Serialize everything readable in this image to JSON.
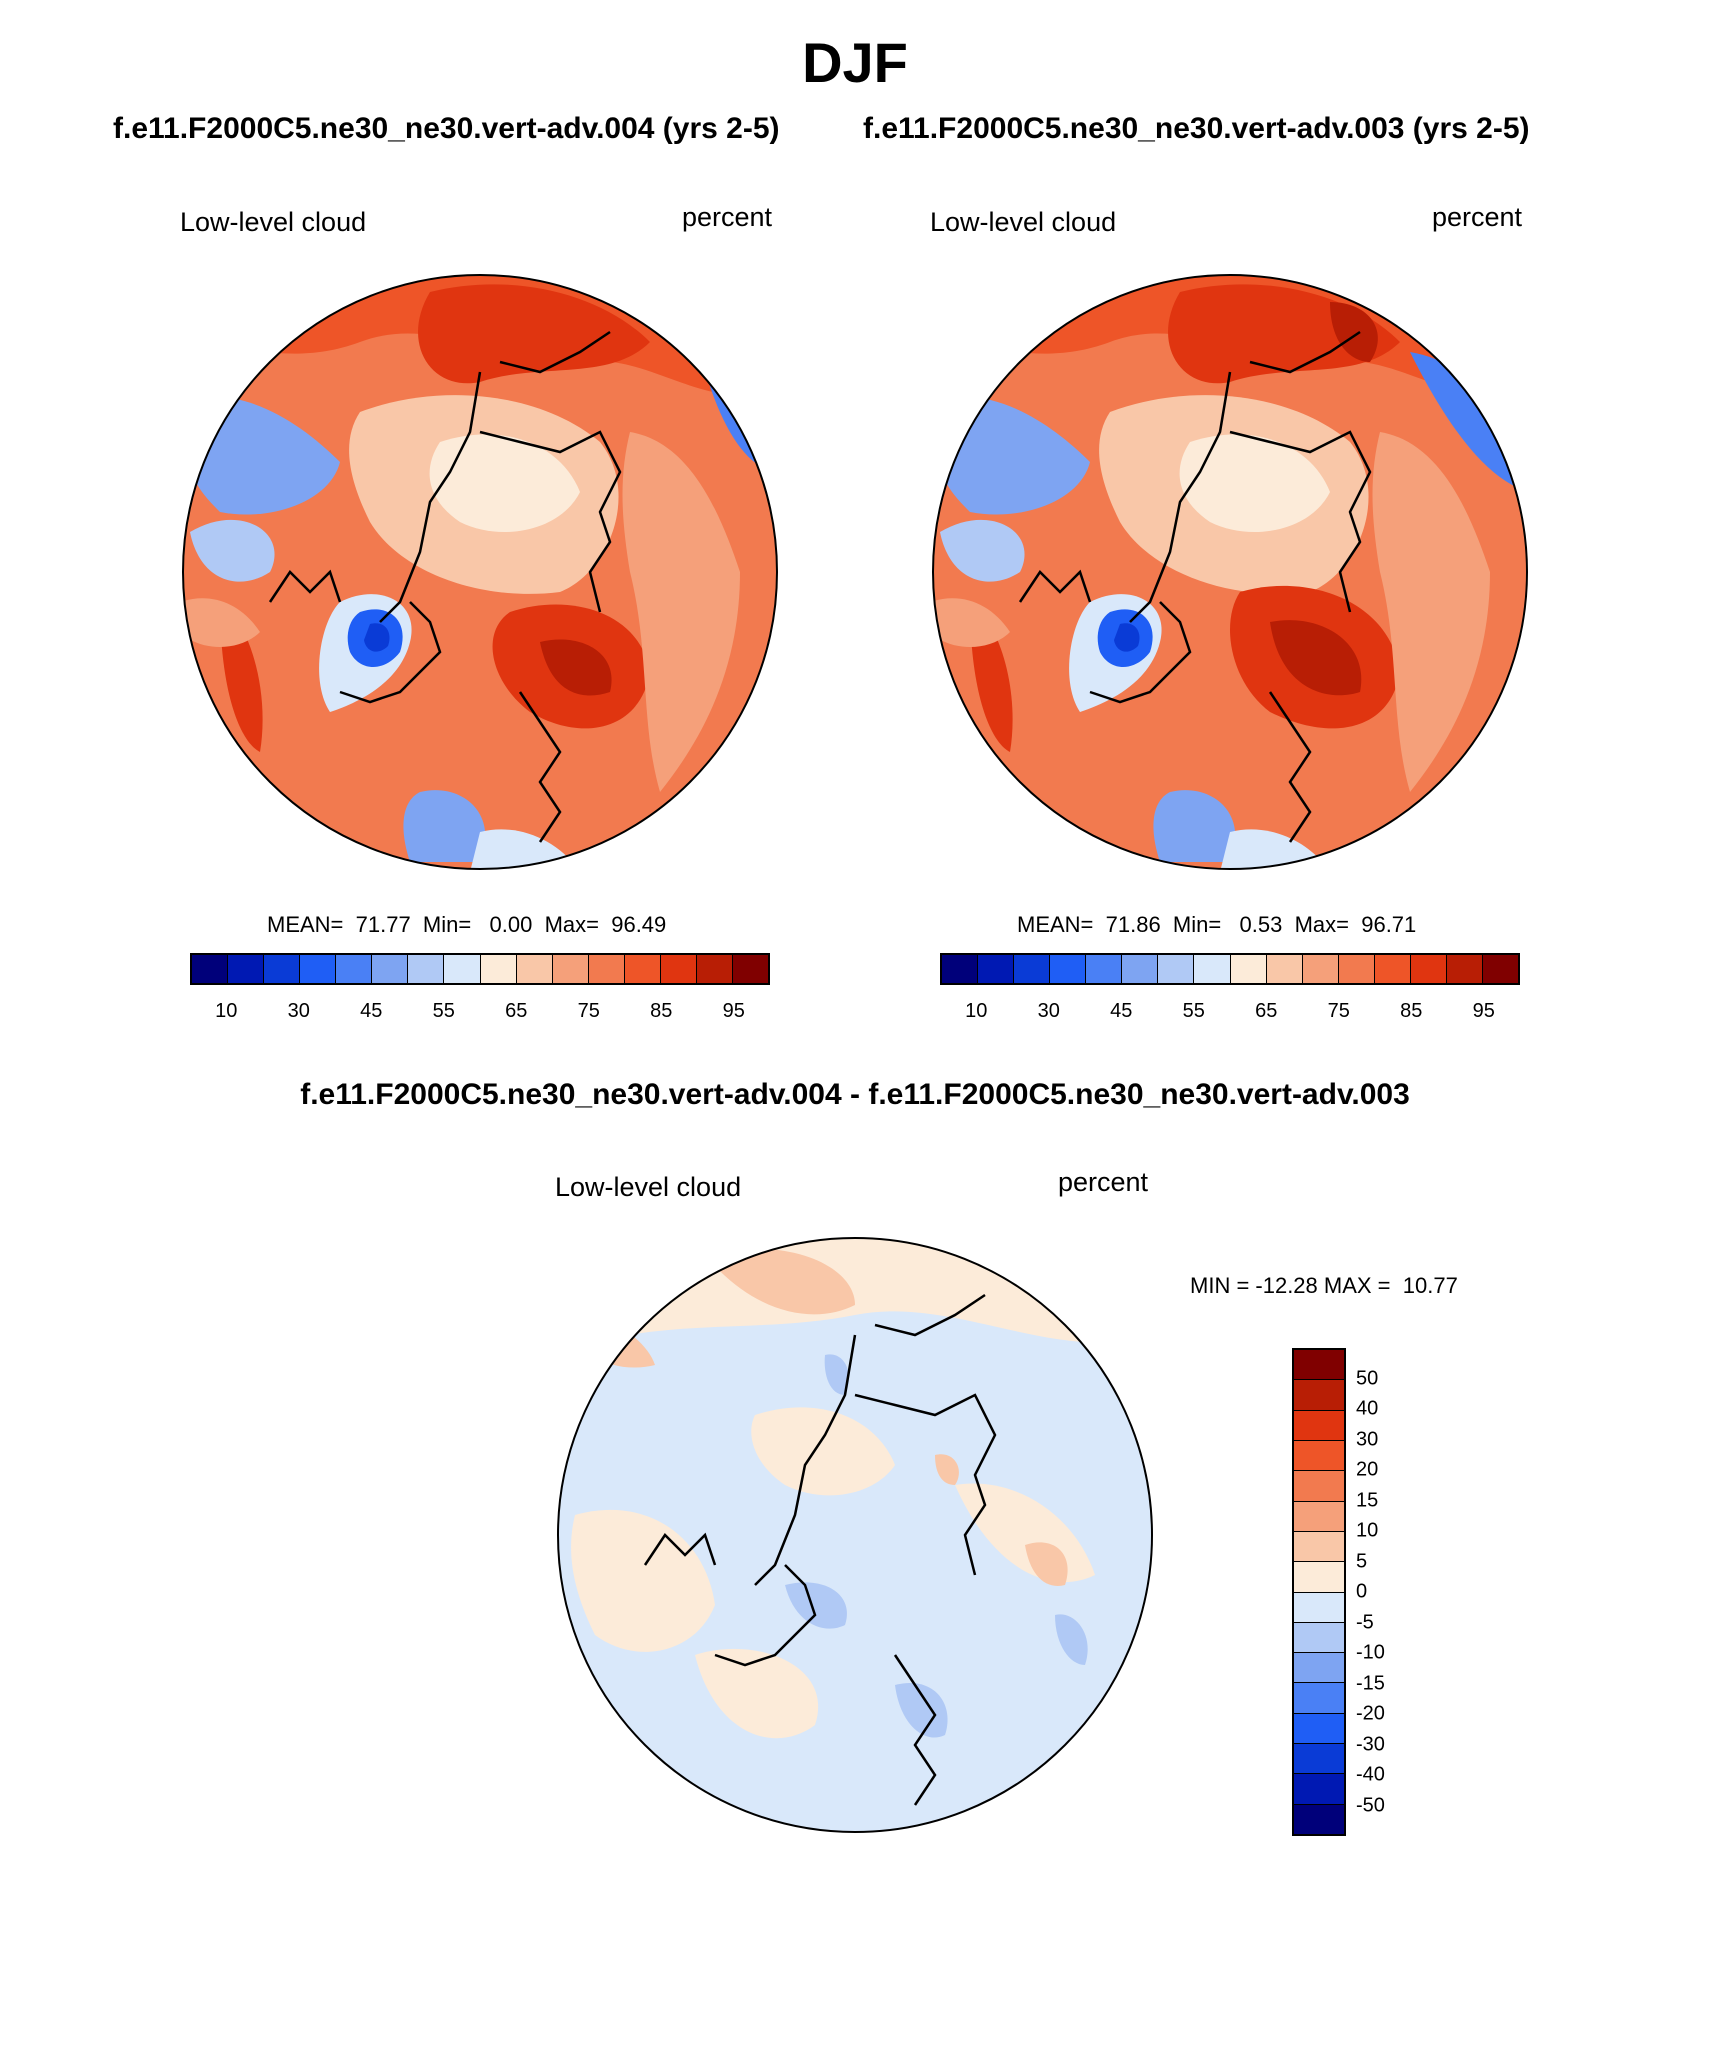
{
  "title": "DJF",
  "panels": [
    {
      "case": "f.e11.F2000C5.ne30_ne30.vert-adv.004 (yrs 2-5)",
      "variable": "Low-level cloud",
      "units": "percent",
      "stats": "MEAN=  71.77  Min=   0.00  Max=  96.49"
    },
    {
      "case": "f.e11.F2000C5.ne30_ne30.vert-adv.003 (yrs 2-5)",
      "variable": "Low-level cloud",
      "units": "percent",
      "stats": "MEAN=  71.86  Min=   0.53  Max=  96.71"
    }
  ],
  "diff": {
    "title": "f.e11.F2000C5.ne30_ne30.vert-adv.004 - f.e11.F2000C5.ne30_ne30.vert-adv.003",
    "variable": "Low-level cloud",
    "units": "percent",
    "stats": "MIN = -12.28 MAX =  10.77"
  },
  "colorbar_abs": {
    "colors": [
      "#00007a",
      "#0019b3",
      "#0a3bd6",
      "#1f5ef5",
      "#4a80f5",
      "#7ea4f2",
      "#b0c9f5",
      "#d9e8fa",
      "#fcebd9",
      "#f9c7a8",
      "#f5a07a",
      "#f27a4f",
      "#ee5528",
      "#e03510",
      "#b81e05",
      "#800000"
    ],
    "labels": [
      "10",
      "30",
      "45",
      "55",
      "65",
      "75",
      "85",
      "95"
    ]
  },
  "colorbar_diff": {
    "colors": [
      "#800000",
      "#b81e05",
      "#e03510",
      "#ee5528",
      "#f27a4f",
      "#f5a07a",
      "#f9c7a8",
      "#fcebd9",
      "#d9e8fa",
      "#b0c9f5",
      "#7ea4f2",
      "#4a80f5",
      "#1f5ef5",
      "#0a3bd6",
      "#0019b3",
      "#00007a"
    ],
    "labels": [
      "50",
      "40",
      "30",
      "20",
      "15",
      "10",
      "5",
      "0",
      "-5",
      "-10",
      "-15",
      "-20",
      "-30",
      "-40",
      "-50"
    ]
  }
}
